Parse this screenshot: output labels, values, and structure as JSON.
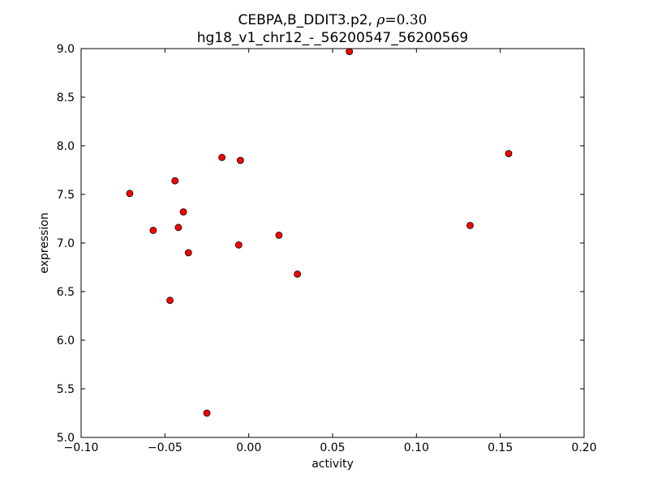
{
  "chart_data": {
    "type": "scatter",
    "title_line1_prefix": "CEBPA,B_DDIT3.p2, ",
    "title_rho_symbol": "ρ",
    "title_rho_value": "=0.30",
    "title_line2": "hg18_v1_chr12_-_56200547_56200569",
    "xlabel": "activity",
    "ylabel": "expression",
    "xlim": [
      -0.1,
      0.2
    ],
    "ylim": [
      5.0,
      9.0
    ],
    "xticks": [
      -0.1,
      -0.05,
      0.0,
      0.05,
      0.1,
      0.15,
      0.2
    ],
    "xtick_labels": [
      "−0.10",
      "−0.05",
      "0.00",
      "0.05",
      "0.10",
      "0.15",
      "0.20"
    ],
    "yticks": [
      5.0,
      5.5,
      6.0,
      6.5,
      7.0,
      7.5,
      8.0,
      8.5,
      9.0
    ],
    "ytick_labels": [
      "5.0",
      "5.5",
      "6.0",
      "6.5",
      "7.0",
      "7.5",
      "8.0",
      "8.5",
      "9.0"
    ],
    "grid": false,
    "marker_color": "#ff0000",
    "marker_edge": "#000000",
    "points": [
      {
        "x": -0.071,
        "y": 7.51
      },
      {
        "x": -0.057,
        "y": 7.13
      },
      {
        "x": -0.047,
        "y": 6.41
      },
      {
        "x": -0.044,
        "y": 7.64
      },
      {
        "x": -0.042,
        "y": 7.16
      },
      {
        "x": -0.039,
        "y": 7.32
      },
      {
        "x": -0.036,
        "y": 6.9
      },
      {
        "x": -0.025,
        "y": 5.25
      },
      {
        "x": -0.016,
        "y": 7.88
      },
      {
        "x": -0.006,
        "y": 6.98
      },
      {
        "x": -0.005,
        "y": 7.85
      },
      {
        "x": 0.018,
        "y": 7.08
      },
      {
        "x": 0.029,
        "y": 6.68
      },
      {
        "x": 0.06,
        "y": 8.97
      },
      {
        "x": 0.132,
        "y": 7.18
      },
      {
        "x": 0.155,
        "y": 7.92
      }
    ]
  }
}
